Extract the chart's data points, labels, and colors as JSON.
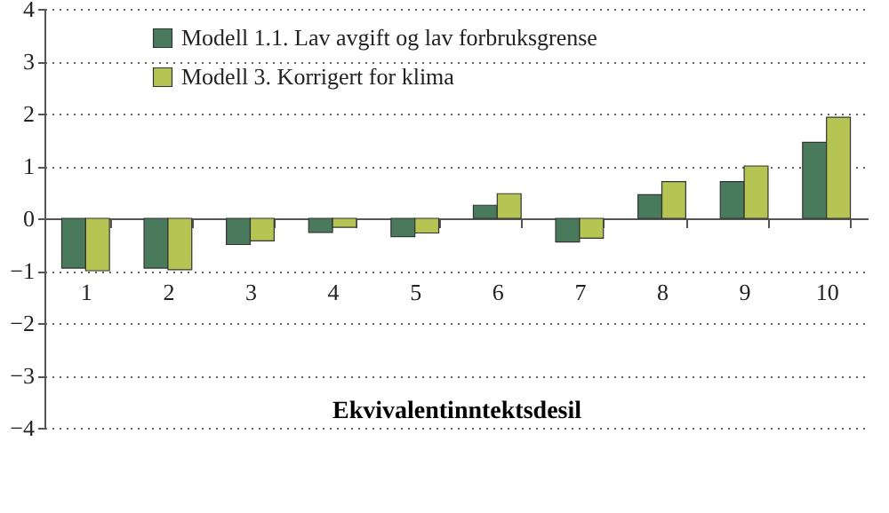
{
  "chart_data": {
    "type": "bar",
    "xlabel": "Ekvivalentinntektsdesil",
    "categories": [
      "1",
      "2",
      "3",
      "4",
      "5",
      "6",
      "7",
      "8",
      "9",
      "10"
    ],
    "series": [
      {
        "name": "Modell 1.1. Lav avgift og lav forbruksgrense",
        "color": "#4a7a5c",
        "values": [
          -0.95,
          -0.95,
          -0.5,
          -0.27,
          -0.35,
          0.25,
          -0.45,
          0.45,
          0.7,
          1.45
        ]
      },
      {
        "name": "Modell 3. Korrigert for klima",
        "color": "#b5c452",
        "values": [
          -1.0,
          -0.98,
          -0.43,
          -0.17,
          -0.28,
          0.47,
          -0.38,
          0.7,
          1.0,
          1.93
        ]
      }
    ],
    "ylim": [
      -4,
      4
    ],
    "yticks": [
      -4,
      -3,
      -2,
      -1,
      0,
      1,
      2,
      3,
      4
    ],
    "grid": "y",
    "legend": "top left"
  }
}
